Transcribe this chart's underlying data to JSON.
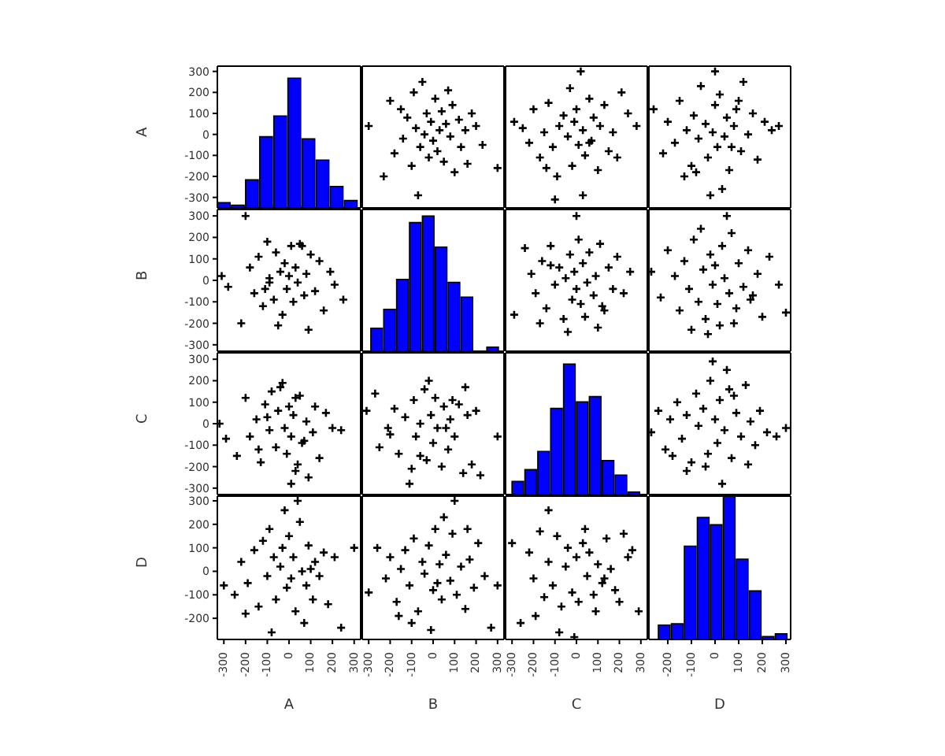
{
  "chart_data": [
    {
      "type": "histogram",
      "bins": [
        -330,
        -265,
        -200,
        -135,
        -70,
        -5,
        60,
        125,
        190,
        255,
        320
      ],
      "base": [
        -350,
        -350,
        -350,
        -350,
        -350,
        -350,
        -350,
        -350,
        -350,
        -350
      ],
      "values": [
        25,
        13,
        134,
        339,
        438,
        618,
        329,
        228,
        102,
        35
      ],
      "color": "#0000ff",
      "xlim": [
        -330,
        330
      ],
      "xticks": [
        -300,
        -200,
        -100,
        0,
        100,
        200,
        300
      ],
      "ylabel": "A",
      "ylim": [
        -350,
        325
      ],
      "yticks": [
        -300,
        -200,
        -100,
        0,
        100,
        200,
        300
      ],
      "tick_labels": "y"
    },
    {
      "type": "scatter",
      "marker": "cross",
      "color": "#000000",
      "xlim": [
        -330,
        330
      ],
      "ylim": [
        -350,
        325
      ],
      "xticks": [
        -300,
        -200,
        -100,
        0,
        100,
        200,
        300
      ],
      "yticks": [
        -300,
        -200,
        -100,
        0,
        100,
        200,
        300
      ],
      "tick_labels": false,
      "x": [
        -300,
        -230,
        -200,
        -180,
        -150,
        -140,
        -120,
        -100,
        -90,
        -80,
        -60,
        -50,
        -40,
        -30,
        -20,
        -10,
        0,
        10,
        20,
        30,
        40,
        50,
        60,
        70,
        80,
        90,
        100,
        120,
        130,
        150,
        160,
        180,
        200,
        230,
        -70,
        300
      ],
      "values": [
        40,
        -200,
        160,
        -90,
        120,
        -20,
        80,
        -150,
        200,
        30,
        -60,
        250,
        0,
        100,
        -110,
        60,
        -30,
        170,
        -80,
        20,
        110,
        -130,
        50,
        210,
        -10,
        140,
        -180,
        70,
        -60,
        20,
        -140,
        100,
        40,
        -50,
        -290,
        -160
      ]
    },
    {
      "type": "scatter",
      "marker": "cross",
      "color": "#000000",
      "xlim": [
        -330,
        330
      ],
      "ylim": [
        -350,
        325
      ],
      "xticks": [
        -300,
        -200,
        -100,
        0,
        100,
        200,
        300
      ],
      "yticks": [
        -300,
        -200,
        -100,
        0,
        100,
        200,
        300
      ],
      "tick_labels": false,
      "x": [
        -290,
        -250,
        -220,
        -200,
        -170,
        -150,
        -130,
        -110,
        -90,
        -80,
        -60,
        -40,
        -30,
        -20,
        -10,
        0,
        10,
        20,
        30,
        40,
        60,
        70,
        80,
        100,
        110,
        130,
        150,
        170,
        190,
        210,
        240,
        -100,
        30,
        -140,
        60,
        280
      ],
      "values": [
        60,
        30,
        -40,
        120,
        -110,
        10,
        150,
        -60,
        -200,
        40,
        90,
        -10,
        220,
        -150,
        60,
        120,
        -50,
        300,
        20,
        -100,
        170,
        -30,
        80,
        -170,
        40,
        140,
        -80,
        10,
        -110,
        200,
        100,
        -310,
        -290,
        -160,
        -40,
        40
      ]
    },
    {
      "type": "scatter",
      "marker": "cross",
      "color": "#000000",
      "xlim": [
        -280,
        320
      ],
      "ylim": [
        -350,
        325
      ],
      "xticks": [
        -200,
        -100,
        0,
        100,
        200,
        300
      ],
      "yticks": [
        -300,
        -200,
        -100,
        0,
        100,
        200,
        300
      ],
      "tick_labels": false,
      "x": [
        -260,
        -220,
        -200,
        -170,
        -150,
        -120,
        -100,
        -90,
        -70,
        -60,
        -40,
        -30,
        -10,
        0,
        10,
        20,
        40,
        50,
        60,
        80,
        90,
        110,
        120,
        140,
        160,
        180,
        210,
        240,
        -130,
        70,
        -20,
        30,
        100,
        -80,
        270,
        0
      ],
      "values": [
        120,
        -90,
        60,
        -40,
        160,
        20,
        -150,
        90,
        -20,
        230,
        50,
        -110,
        10,
        140,
        -60,
        190,
        -10,
        80,
        -170,
        40,
        120,
        -80,
        250,
        0,
        100,
        -120,
        60,
        20,
        -200,
        -60,
        -290,
        -260,
        160,
        -180,
        40,
        300
      ]
    },
    {
      "type": "scatter",
      "marker": "cross",
      "color": "#000000",
      "xlim": [
        -330,
        330
      ],
      "ylim": [
        -330,
        330
      ],
      "xticks": [
        -300,
        -200,
        -100,
        0,
        100,
        200,
        300
      ],
      "yticks": [
        -300,
        -200,
        -100,
        0,
        100,
        200,
        300
      ],
      "ylabel": "B",
      "tick_labels": "y",
      "x": [
        -310,
        -280,
        -220,
        -180,
        -160,
        -140,
        -120,
        -100,
        -90,
        -70,
        -60,
        -40,
        -30,
        -20,
        -10,
        0,
        10,
        20,
        30,
        40,
        50,
        70,
        80,
        90,
        100,
        120,
        140,
        160,
        190,
        210,
        250,
        -200,
        -50,
        60,
        -110,
        -90
      ],
      "values": [
        20,
        -30,
        -200,
        60,
        -60,
        110,
        -120,
        180,
        10,
        -90,
        130,
        40,
        -160,
        80,
        -40,
        20,
        160,
        -100,
        60,
        -10,
        170,
        -70,
        30,
        -230,
        120,
        -50,
        90,
        -140,
        40,
        -20,
        -90,
        300,
        -210,
        160,
        -40,
        -10
      ]
    },
    {
      "type": "histogram",
      "bins": [
        -290,
        -230,
        -170,
        -110,
        -50,
        10,
        70,
        130,
        190,
        250,
        310
      ],
      "base": [
        -330,
        -330,
        -330,
        -330,
        -330,
        -330,
        -330,
        -330,
        null,
        -330
      ],
      "values": [
        107,
        195,
        334,
        599,
        630,
        485,
        321,
        252,
        null,
        19
      ],
      "color": "#0000ff",
      "xlim": [
        -330,
        330
      ],
      "ylim": [
        -330,
        330
      ],
      "yticks": [
        -300,
        -200,
        -100,
        0,
        100,
        200,
        300
      ],
      "xticks": [
        -300,
        -200,
        -100,
        0,
        100,
        200,
        300
      ],
      "tick_labels": false
    },
    {
      "type": "scatter",
      "marker": "cross",
      "color": "#000000",
      "xlim": [
        -330,
        330
      ],
      "ylim": [
        -330,
        330
      ],
      "xticks": [
        -300,
        -200,
        -100,
        0,
        100,
        200,
        300
      ],
      "yticks": [
        -300,
        -200,
        -100,
        0,
        100,
        200,
        300
      ],
      "tick_labels": false,
      "x": [
        -290,
        -240,
        -210,
        -190,
        -160,
        -140,
        -120,
        -100,
        -80,
        -60,
        -50,
        -30,
        -20,
        -10,
        0,
        10,
        20,
        30,
        50,
        60,
        80,
        90,
        110,
        130,
        150,
        170,
        190,
        220,
        250,
        -170,
        -40,
        40,
        100,
        -120,
        120,
        0
      ],
      "values": [
        -160,
        150,
        30,
        -60,
        90,
        -130,
        160,
        -20,
        60,
        -180,
        10,
        120,
        -90,
        40,
        -40,
        190,
        -110,
        80,
        -10,
        130,
        -70,
        20,
        170,
        -140,
        60,
        -40,
        110,
        -60,
        40,
        -200,
        -240,
        -170,
        -220,
        70,
        -120,
        300
      ]
    },
    {
      "type": "scatter",
      "marker": "cross",
      "color": "#000000",
      "xlim": [
        -280,
        320
      ],
      "ylim": [
        -330,
        330
      ],
      "xticks": [
        -200,
        -100,
        0,
        100,
        200,
        300
      ],
      "yticks": [
        -300,
        -200,
        -100,
        0,
        100,
        200,
        300
      ],
      "tick_labels": false,
      "x": [
        -270,
        -230,
        -200,
        -170,
        -150,
        -130,
        -110,
        -90,
        -70,
        -50,
        -40,
        -20,
        -10,
        0,
        10,
        30,
        40,
        60,
        70,
        90,
        100,
        120,
        140,
        160,
        180,
        200,
        230,
        270,
        300,
        -100,
        -30,
        20,
        80,
        -60,
        50,
        150
      ],
      "values": [
        40,
        -80,
        140,
        20,
        -140,
        90,
        -40,
        190,
        -100,
        50,
        -180,
        120,
        -20,
        70,
        -110,
        160,
        10,
        -60,
        220,
        -130,
        80,
        -30,
        140,
        -70,
        30,
        -170,
        110,
        -20,
        -150,
        -230,
        -250,
        -210,
        -200,
        240,
        300,
        -90
      ]
    },
    {
      "type": "scatter",
      "marker": "cross",
      "color": "#000000",
      "xlim": [
        -330,
        330
      ],
      "ylim": [
        -330,
        330
      ],
      "xticks": [
        -300,
        -200,
        -100,
        0,
        100,
        200,
        300
      ],
      "yticks": [
        -300,
        -200,
        -100,
        0,
        100,
        200,
        300
      ],
      "ylabel": "C",
      "tick_labels": "y",
      "x": [
        -320,
        -290,
        -240,
        -200,
        -180,
        -150,
        -130,
        -110,
        -90,
        -80,
        -60,
        -50,
        -30,
        -20,
        -10,
        0,
        10,
        20,
        30,
        50,
        60,
        80,
        90,
        110,
        120,
        140,
        170,
        200,
        240,
        -140,
        -40,
        40,
        70,
        -100,
        10,
        30
      ],
      "values": [
        0,
        -70,
        -150,
        120,
        -60,
        20,
        -180,
        90,
        -30,
        150,
        -110,
        60,
        190,
        -20,
        -140,
        80,
        -60,
        40,
        -220,
        130,
        -90,
        10,
        -250,
        -40,
        80,
        -160,
        50,
        -20,
        -30,
        -120,
        170,
        -190,
        -80,
        30,
        -280,
        120
      ]
    },
    {
      "type": "scatter",
      "marker": "cross",
      "color": "#000000",
      "xlim": [
        -330,
        330
      ],
      "ylim": [
        -330,
        330
      ],
      "xticks": [
        -300,
        -200,
        -100,
        0,
        100,
        200,
        300
      ],
      "yticks": [
        -300,
        -200,
        -100,
        0,
        100,
        200,
        300
      ],
      "tick_labels": false,
      "x": [
        -310,
        -270,
        -250,
        -210,
        -180,
        -160,
        -130,
        -110,
        -90,
        -80,
        -60,
        -40,
        -30,
        -10,
        0,
        10,
        20,
        40,
        50,
        70,
        80,
        100,
        120,
        140,
        160,
        180,
        200,
        220,
        300,
        -200,
        -100,
        -20,
        60,
        -60,
        90,
        150
      ],
      "values": [
        60,
        140,
        -110,
        -20,
        70,
        -140,
        30,
        -280,
        110,
        -60,
        0,
        160,
        -170,
        40,
        -90,
        120,
        -20,
        -200,
        80,
        -120,
        20,
        -60,
        90,
        -230,
        40,
        -190,
        60,
        -240,
        -60,
        -50,
        -210,
        200,
        -20,
        -150,
        110,
        170
      ]
    },
    {
      "type": "histogram",
      "bins": [
        -300,
        -240,
        -180,
        -120,
        -60,
        0,
        60,
        120,
        180,
        240,
        300
      ],
      "base": [
        -330,
        -330,
        -330,
        -330,
        -330,
        -330,
        -330,
        -330,
        -330,
        -330
      ],
      "values": [
        61,
        116,
        201,
        401,
        608,
        432,
        456,
        158,
        91,
        12
      ],
      "color": "#0000ff",
      "xlim": [
        -330,
        330
      ],
      "ylim": [
        -330,
        330
      ],
      "yticks": [
        -300,
        -200,
        -100,
        0,
        100,
        200,
        300
      ],
      "xticks": [
        -300,
        -200,
        -100,
        0,
        100,
        200,
        300
      ],
      "tick_labels": false
    },
    {
      "type": "scatter",
      "marker": "cross",
      "color": "#000000",
      "xlim": [
        -280,
        320
      ],
      "ylim": [
        -330,
        330
      ],
      "xticks": [
        -200,
        -100,
        0,
        100,
        200,
        300
      ],
      "yticks": [
        -300,
        -200,
        -100,
        0,
        100,
        200,
        300
      ],
      "tick_labels": false,
      "x": [
        -270,
        -240,
        -210,
        -190,
        -160,
        -140,
        -120,
        -100,
        -80,
        -70,
        -50,
        -30,
        -20,
        0,
        10,
        20,
        40,
        60,
        70,
        90,
        110,
        130,
        150,
        170,
        190,
        220,
        260,
        300,
        -120,
        -40,
        30,
        80,
        -180,
        140,
        50,
        -10
      ],
      "values": [
        -40,
        60,
        -120,
        20,
        100,
        -70,
        40,
        -180,
        140,
        -10,
        70,
        -140,
        200,
        20,
        -90,
        110,
        -30,
        160,
        -160,
        50,
        -60,
        180,
        10,
        -100,
        60,
        -40,
        -60,
        -20,
        -220,
        -200,
        -280,
        130,
        -150,
        -190,
        250,
        290
      ]
    },
    {
      "type": "scatter",
      "marker": "cross",
      "color": "#000000",
      "xlim": [
        -330,
        330
      ],
      "ylim": [
        -290,
        320
      ],
      "xticks": [
        -300,
        -200,
        -100,
        0,
        100,
        200,
        300
      ],
      "yticks": [
        -200,
        -100,
        0,
        100,
        200,
        300
      ],
      "xlabel": "A",
      "ylabel": "D",
      "x": [
        -300,
        -250,
        -220,
        -190,
        -160,
        -140,
        -120,
        -100,
        -90,
        -70,
        -60,
        -40,
        -30,
        -10,
        0,
        10,
        20,
        30,
        50,
        60,
        80,
        90,
        110,
        120,
        140,
        160,
        180,
        210,
        240,
        300,
        -200,
        -80,
        40,
        70,
        -20,
        100
      ],
      "values": [
        -60,
        -100,
        40,
        -50,
        90,
        -150,
        130,
        -20,
        180,
        60,
        -120,
        20,
        100,
        -70,
        150,
        -30,
        60,
        -170,
        210,
        0,
        -60,
        110,
        -120,
        40,
        -20,
        80,
        -140,
        60,
        -240,
        100,
        -180,
        -260,
        300,
        -220,
        260,
        10
      ]
    },
    {
      "type": "scatter",
      "marker": "cross",
      "color": "#000000",
      "xlim": [
        -330,
        330
      ],
      "ylim": [
        -290,
        320
      ],
      "xticks": [
        -300,
        -200,
        -100,
        0,
        100,
        200,
        300
      ],
      "yticks": [
        -200,
        -100,
        0,
        100,
        200,
        300
      ],
      "xlabel": "B",
      "tick_labels": "x",
      "x": [
        -300,
        -260,
        -220,
        -200,
        -170,
        -150,
        -130,
        -110,
        -90,
        -70,
        -50,
        -40,
        -20,
        0,
        10,
        30,
        40,
        60,
        80,
        90,
        110,
        130,
        150,
        170,
        190,
        210,
        240,
        270,
        300,
        -100,
        -10,
        50,
        100,
        -160,
        160,
        20
      ],
      "values": [
        -90,
        100,
        -30,
        60,
        -130,
        10,
        90,
        -60,
        140,
        -170,
        40,
        -10,
        110,
        -80,
        180,
        30,
        -120,
        70,
        -40,
        160,
        -100,
        20,
        -160,
        50,
        -70,
        120,
        -20,
        -240,
        -60,
        -220,
        -250,
        230,
        300,
        -190,
        180,
        -50
      ]
    },
    {
      "type": "scatter",
      "marker": "cross",
      "color": "#000000",
      "xlim": [
        -330,
        330
      ],
      "ylim": [
        -290,
        320
      ],
      "xticks": [
        -300,
        -200,
        -100,
        0,
        100,
        200,
        300
      ],
      "yticks": [
        -200,
        -100,
        0,
        100,
        200,
        300
      ],
      "xlabel": "C",
      "tick_labels": "x",
      "x": [
        -300,
        -260,
        -220,
        -200,
        -170,
        -150,
        -130,
        -110,
        -90,
        -70,
        -50,
        -40,
        -20,
        0,
        10,
        30,
        50,
        60,
        80,
        100,
        120,
        140,
        160,
        180,
        200,
        220,
        240,
        -190,
        -80,
        -10,
        40,
        90,
        -130,
        130,
        260,
        290
      ],
      "values": [
        120,
        -220,
        80,
        -30,
        170,
        -110,
        40,
        -60,
        150,
        -150,
        20,
        100,
        -90,
        60,
        -130,
        120,
        -20,
        80,
        -100,
        30,
        -50,
        140,
        10,
        -80,
        -130,
        160,
        60,
        -190,
        -260,
        -280,
        180,
        -170,
        260,
        -30,
        90,
        -170
      ]
    },
    {
      "type": "histogram",
      "bins": [
        -240,
        -185,
        -130,
        -75,
        -20,
        35,
        90,
        145,
        200,
        255,
        310
      ],
      "base": [
        -290,
        -290,
        -290,
        -290,
        -290,
        -290,
        -290,
        -290,
        -290,
        -290
      ],
      "values": [
        61,
        67,
        397,
        519,
        488,
        610,
        342,
        207,
        12,
        24
      ],
      "color": "#0000ff",
      "xlim": [
        -280,
        320
      ],
      "ylim": [
        -290,
        320
      ],
      "yticks": [
        -200,
        -100,
        0,
        100,
        200,
        300
      ],
      "xticks": [
        -200,
        -100,
        0,
        100,
        200,
        300
      ],
      "xlabel": "D",
      "tick_labels": "x"
    }
  ]
}
